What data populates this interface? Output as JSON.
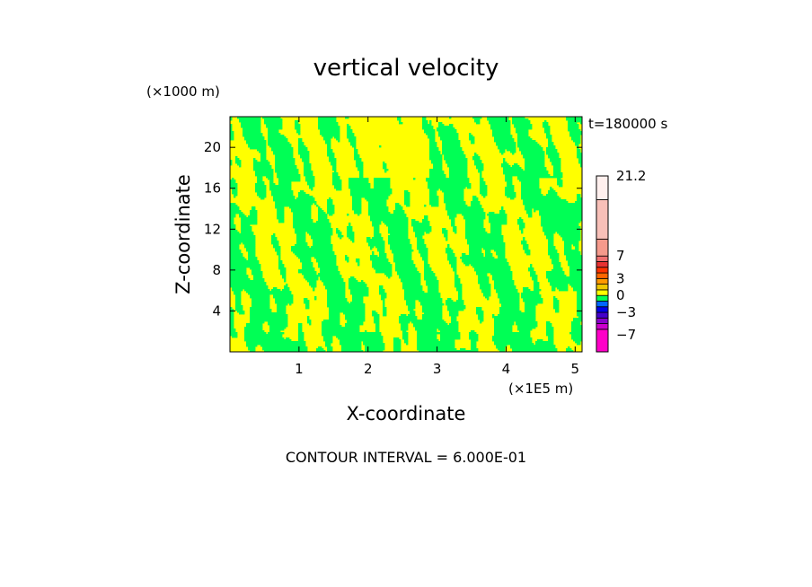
{
  "chart_data": {
    "type": "heatmap",
    "title": "vertical velocity",
    "xlabel": "X-coordinate",
    "ylabel": "Z-coordinate",
    "x_unit": "(×1E5 m)",
    "y_unit": "(×1000 m)",
    "time_label": "t=180000 s",
    "contour_interval_label": "CONTOUR INTERVAL = 6.000E-01",
    "xlim": [
      0,
      5.1
    ],
    "ylim": [
      0,
      23
    ],
    "x_ticks": [
      1,
      2,
      3,
      4,
      5
    ],
    "x_tick_labels": [
      "1",
      "2",
      "3",
      "4",
      "5"
    ],
    "y_ticks": [
      4,
      8,
      12,
      16,
      20
    ],
    "y_tick_labels": [
      "4",
      "8",
      "12",
      "16",
      "20"
    ],
    "field_colors": {
      "positive": "#ffff00",
      "negative": "#00ff55"
    },
    "colorbar": {
      "min": -10,
      "max": 21.2,
      "label_values": [
        21.2,
        7,
        3,
        0,
        -3,
        -7
      ],
      "labels": [
        "21.2",
        "7",
        "3",
        "0",
        "−3",
        "−7"
      ],
      "bands": [
        {
          "from": -10,
          "to": -6,
          "color": "#ff00c8"
        },
        {
          "from": -6,
          "to": -5,
          "color": "#cc00cc"
        },
        {
          "from": -5,
          "to": -4,
          "color": "#8a00cc"
        },
        {
          "from": -4,
          "to": -3,
          "color": "#4400cc"
        },
        {
          "from": -3,
          "to": -2,
          "color": "#0000e6"
        },
        {
          "from": -2,
          "to": -1,
          "color": "#0066ff"
        },
        {
          "from": -1,
          "to": 0,
          "color": "#00ff55"
        },
        {
          "from": 0,
          "to": 1,
          "color": "#ffff00"
        },
        {
          "from": 1,
          "to": 2,
          "color": "#f0c800"
        },
        {
          "from": 2,
          "to": 3,
          "color": "#ff9900"
        },
        {
          "from": 3,
          "to": 4,
          "color": "#ff6600"
        },
        {
          "from": 4,
          "to": 5,
          "color": "#ff3300"
        },
        {
          "from": 5,
          "to": 6,
          "color": "#e63232"
        },
        {
          "from": 6,
          "to": 7,
          "color": "#f07070"
        },
        {
          "from": 7,
          "to": 10,
          "color": "#f59a8c"
        },
        {
          "from": 10,
          "to": 17,
          "color": "#f8c0b8"
        },
        {
          "from": 17,
          "to": 21.2,
          "color": "#fff0ee"
        }
      ]
    }
  }
}
